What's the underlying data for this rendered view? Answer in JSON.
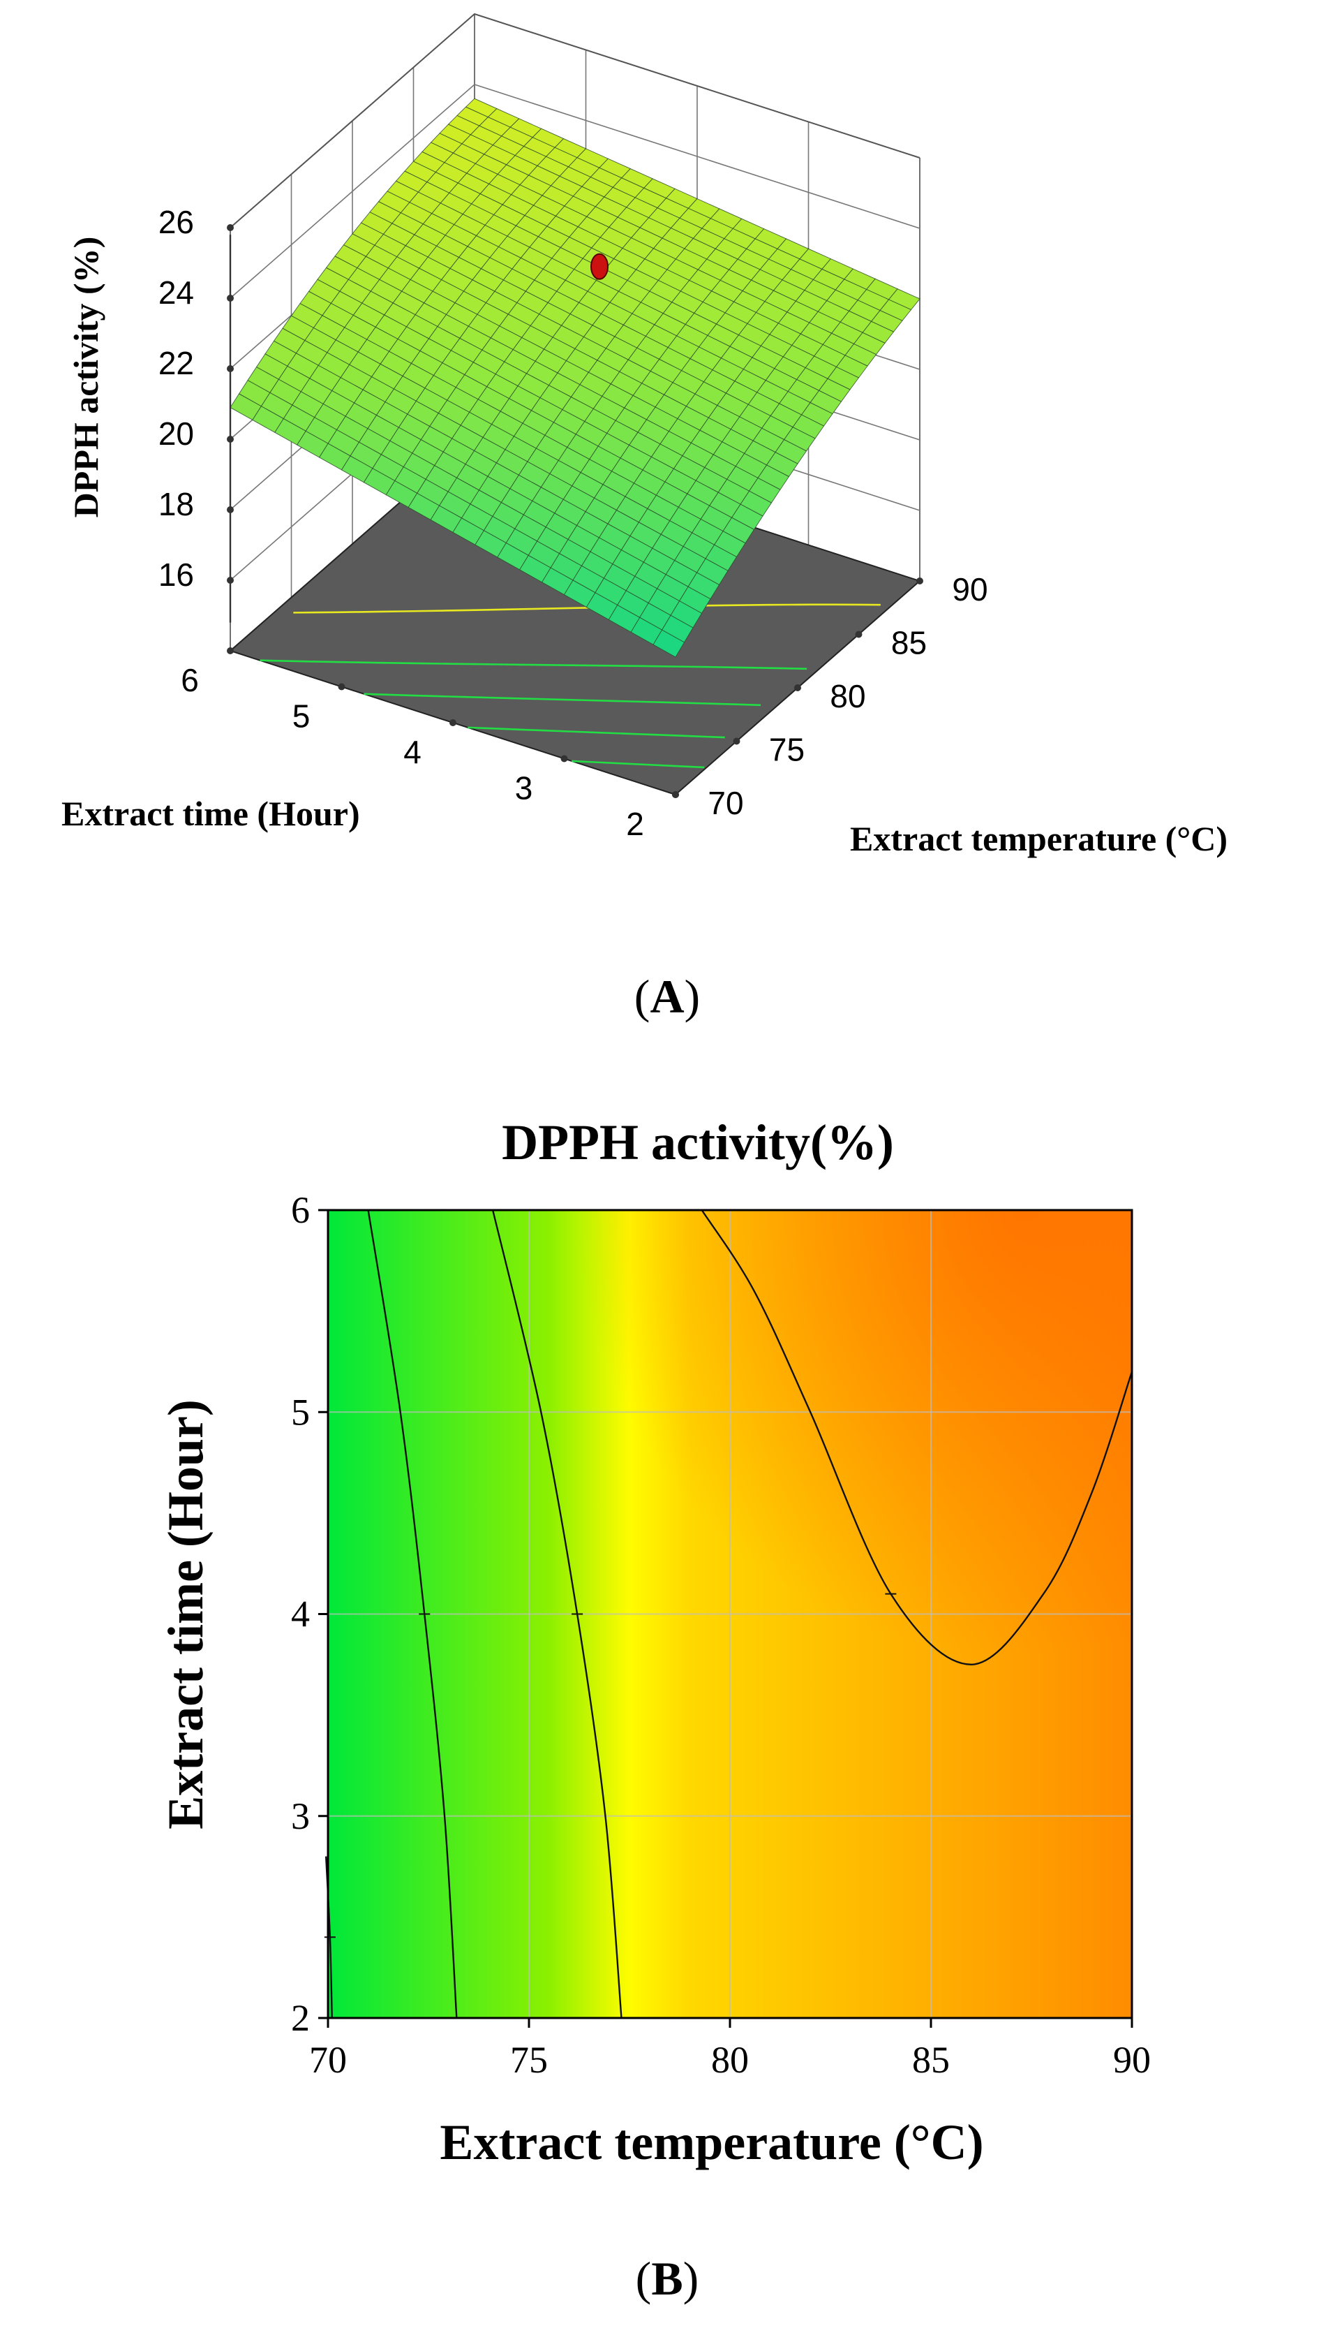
{
  "chart_data": [
    {
      "type": "surface3d",
      "panel_label": "A",
      "zlabel": "DPPH activity (%)",
      "xlabel": "Extract time (Hour)",
      "ylabel": "Extract temperature (°C)",
      "z_ticks": [
        "16",
        "18",
        "20",
        "22",
        "24",
        "26"
      ],
      "x_ticks": [
        "2",
        "3",
        "4",
        "5",
        "6"
      ],
      "y_ticks": [
        "70",
        "75",
        "80",
        "85",
        "90"
      ],
      "zlim": [
        14,
        26
      ],
      "xlim": [
        2,
        6
      ],
      "ylim": [
        70,
        90
      ],
      "corner_values": {
        "time6_temp70": 20.9,
        "time2_temp70": 17.9,
        "time2_temp90": 22.0,
        "time6_temp90": 23.6,
        "peak": 24.6
      },
      "design_point": {
        "time": 4,
        "temp": 82,
        "value": 23.3,
        "color": "#cc1111"
      },
      "surface_colors": {
        "low": "#12d686",
        "mid": "#8ee840",
        "high": "#f0f018"
      },
      "floor_color": "#5a5a5a"
    },
    {
      "type": "contour",
      "panel_label": "B",
      "title": "DPPH activity(%)",
      "xlabel": "Extract temperature (°C)",
      "ylabel": "Extract time (Hour)",
      "x_ticks": [
        "70",
        "75",
        "80",
        "85",
        "90"
      ],
      "y_ticks": [
        "2",
        "3",
        "4",
        "5",
        "6"
      ],
      "xlim": [
        70,
        90
      ],
      "ylim": [
        2,
        6
      ],
      "contour_lines": [
        {
          "name": "contour-1",
          "points": [
            [
              70.1,
              2.0
            ],
            [
              70.05,
              2.4
            ],
            [
              69.95,
              2.8
            ]
          ]
        },
        {
          "name": "contour-2",
          "points": [
            [
              73.2,
              2.0
            ],
            [
              72.9,
              3.0
            ],
            [
              72.4,
              4.0
            ],
            [
              71.8,
              5.0
            ],
            [
              71.0,
              6.0
            ]
          ]
        },
        {
          "name": "contour-3",
          "points": [
            [
              77.3,
              2.0
            ],
            [
              76.9,
              3.0
            ],
            [
              76.2,
              4.0
            ],
            [
              75.3,
              5.0
            ],
            [
              74.1,
              6.0
            ]
          ]
        },
        {
          "name": "contour-4",
          "points": [
            [
              79.3,
              6.0
            ],
            [
              80.6,
              5.6
            ],
            [
              82.0,
              5.0
            ],
            [
              84.0,
              4.1
            ],
            [
              86.0,
              3.75
            ],
            [
              87.8,
              4.1
            ],
            [
              89.0,
              4.6
            ],
            [
              90.0,
              5.2
            ]
          ]
        }
      ],
      "color_stops": [
        {
          "temp": 70,
          "color": "#00e83a"
        },
        {
          "temp": 75.5,
          "color": "#8cf000"
        },
        {
          "temp": 77.5,
          "color": "#fffc00"
        },
        {
          "temp": 79,
          "color": "#ffd800"
        },
        {
          "temp": 90,
          "color": "#ff8c00"
        }
      ],
      "hotspot_color": "#ff6600"
    }
  ]
}
